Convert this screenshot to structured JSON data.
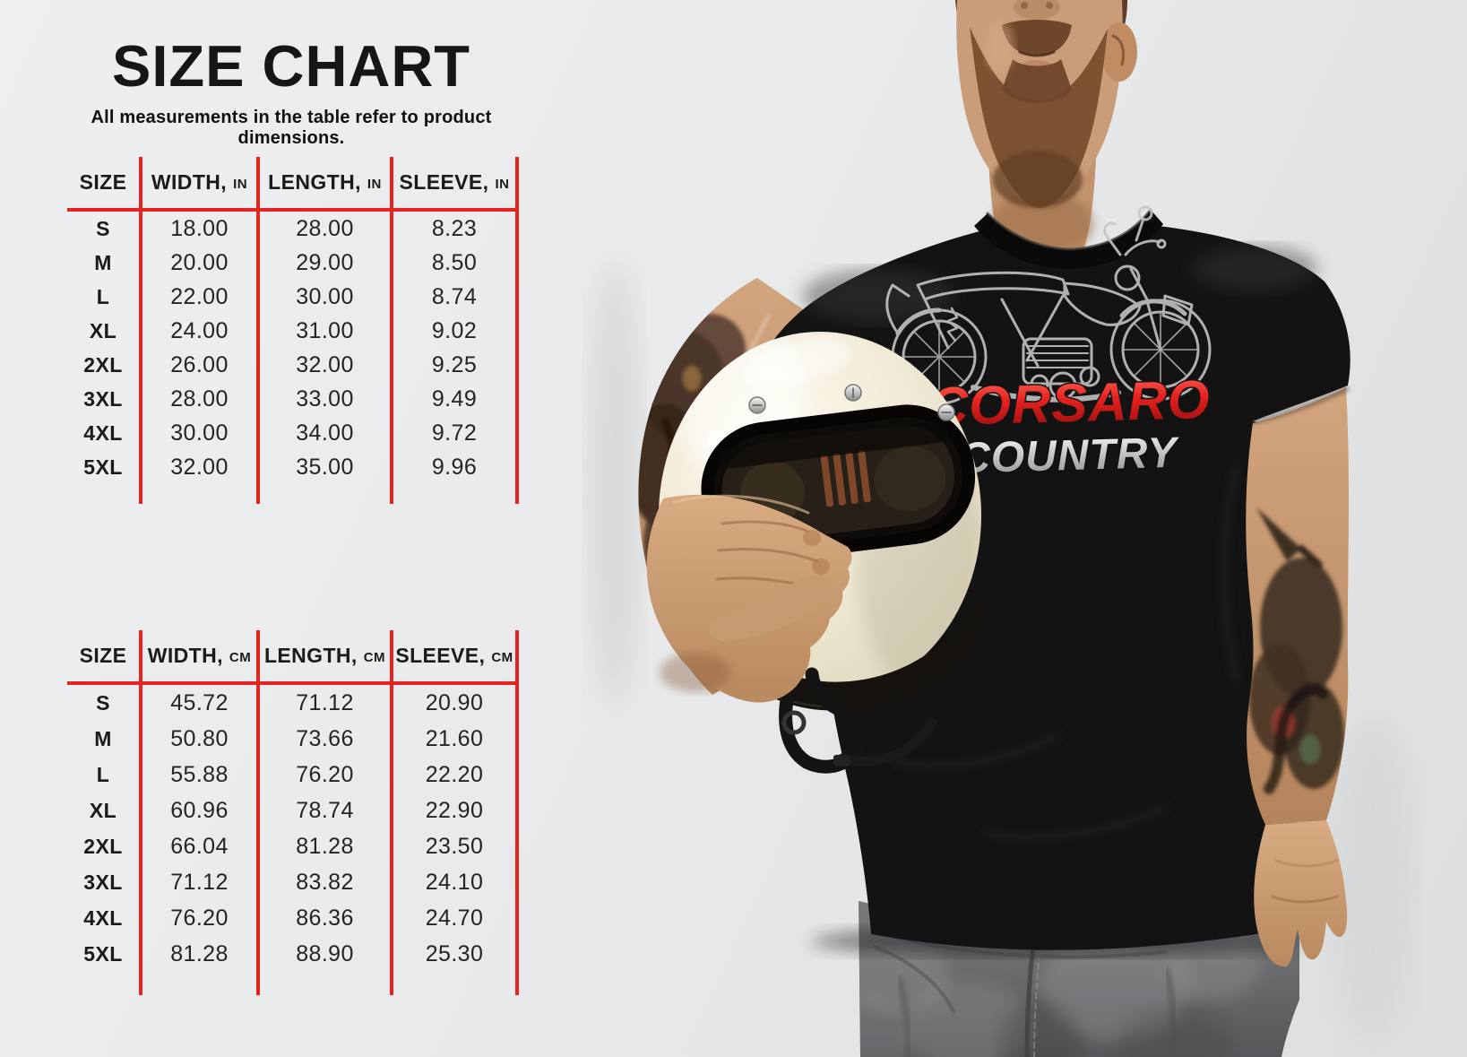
{
  "size_chart": {
    "title": "SIZE CHART",
    "subtitle": "All measurements in the table refer to product dimensions.",
    "line_color": "#e52421",
    "text_color": "#1d1d1d",
    "tables": [
      {
        "name": "inches",
        "columns": [
          {
            "label": "SIZE",
            "unit": ""
          },
          {
            "label": "WIDTH,",
            "unit": "IN"
          },
          {
            "label": "LENGTH,",
            "unit": "IN"
          },
          {
            "label": "SLEEVE,",
            "unit": "IN"
          }
        ],
        "rows": [
          [
            "S",
            "18.00",
            "28.00",
            "8.23"
          ],
          [
            "M",
            "20.00",
            "29.00",
            "8.50"
          ],
          [
            "L",
            "22.00",
            "30.00",
            "8.74"
          ],
          [
            "XL",
            "24.00",
            "31.00",
            "9.02"
          ],
          [
            "2XL",
            "26.00",
            "32.00",
            "9.25"
          ],
          [
            "3XL",
            "28.00",
            "33.00",
            "9.49"
          ],
          [
            "4XL",
            "30.00",
            "34.00",
            "9.72"
          ],
          [
            "5XL",
            "32.00",
            "35.00",
            "9.96"
          ]
        ]
      },
      {
        "name": "centimeters",
        "columns": [
          {
            "label": "SIZE",
            "unit": ""
          },
          {
            "label": "WIDTH,",
            "unit": "CM"
          },
          {
            "label": "LENGTH,",
            "unit": "CM"
          },
          {
            "label": "SLEEVE,",
            "unit": "CM"
          }
        ],
        "rows": [
          [
            "S",
            "45.72",
            "71.12",
            "20.90"
          ],
          [
            "M",
            "50.80",
            "73.66",
            "21.60"
          ],
          [
            "L",
            "55.88",
            "76.20",
            "22.20"
          ],
          [
            "XL",
            "60.96",
            "78.74",
            "22.90"
          ],
          [
            "2XL",
            "66.04",
            "81.28",
            "23.50"
          ],
          [
            "3XL",
            "71.12",
            "83.82",
            "24.10"
          ],
          [
            "4XL",
            "76.20",
            "86.36",
            "24.70"
          ],
          [
            "5XL",
            "81.28",
            "88.90",
            "25.30"
          ]
        ]
      }
    ]
  },
  "photo": {
    "shirt_line1": "CORSARO",
    "shirt_line2": "COUNTRY",
    "shirt_color": "#141414",
    "helmet_color": "#f1ead6",
    "brand_red": "#e31b17",
    "icons": [
      "motorcycle-graphic",
      "helmet",
      "chin-strap"
    ]
  }
}
